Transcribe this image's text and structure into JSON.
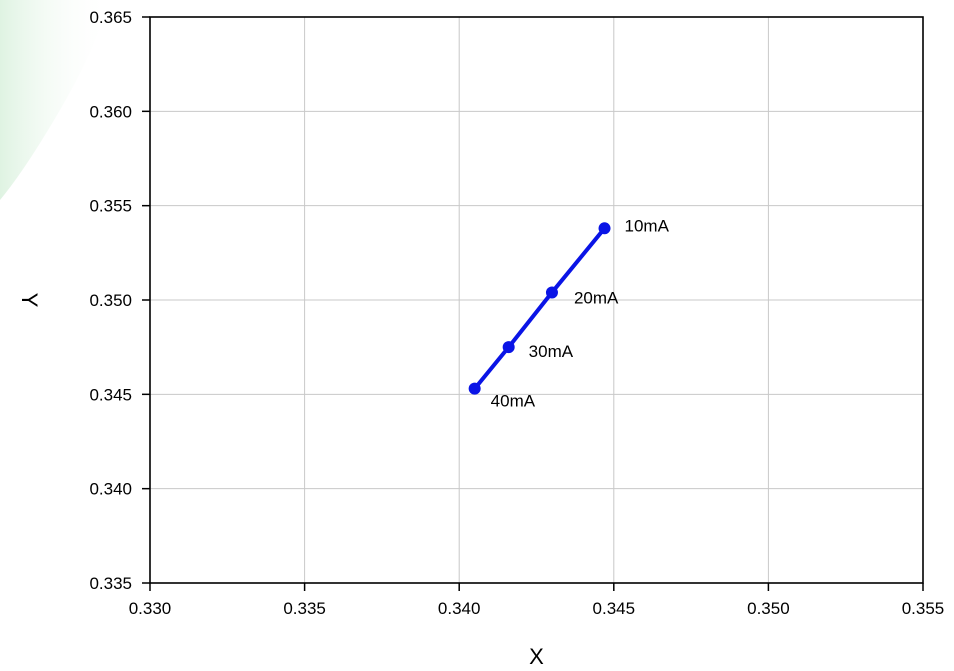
{
  "chart_data": {
    "type": "line",
    "title": "",
    "xlabel": "X",
    "ylabel": "Y",
    "xlim": [
      0.33,
      0.355
    ],
    "ylim": [
      0.335,
      0.365
    ],
    "x_ticks": [
      "0.330",
      "0.335",
      "0.340",
      "0.345",
      "0.350",
      "0.355"
    ],
    "y_ticks": [
      "0.335",
      "0.340",
      "0.345",
      "0.350",
      "0.355",
      "0.360",
      "0.365"
    ],
    "grid": true,
    "series": [
      {
        "color": "#0a14e6",
        "points": [
          {
            "label": "10mA",
            "x": 0.3447,
            "y": 0.3538
          },
          {
            "label": "20mA",
            "x": 0.343,
            "y": 0.3504
          },
          {
            "label": "30mA",
            "x": 0.3416,
            "y": 0.3475
          },
          {
            "label": "40mA",
            "x": 0.3405,
            "y": 0.3453
          }
        ]
      }
    ]
  }
}
